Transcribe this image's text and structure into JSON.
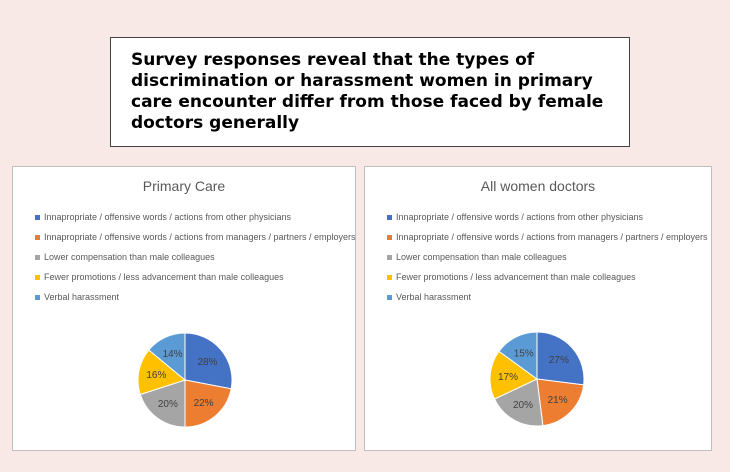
{
  "headline": "Survey responses reveal that the types of discrimination or harassment women in primary care encounter differ from those faced by female doctors generally",
  "colors": [
    "#4472c4",
    "#ed7d31",
    "#a5a5a5",
    "#ffc000",
    "#5b9bd5"
  ],
  "chart_data": [
    {
      "type": "pie",
      "title": "Primary Care",
      "categories": [
        "Innapropriate / offensive words / actions from other physicians",
        "Innapropriate / offensive words / actions from managers / partners / employers",
        "Lower compensation than male colleagues",
        "Fewer promotions / less advancement than male colleagues",
        "Verbal harassment"
      ],
      "values": [
        28,
        22,
        20,
        16,
        14
      ],
      "labels": [
        "28%",
        "22%",
        "20%",
        "16%",
        "14%"
      ],
      "legend": "top"
    },
    {
      "type": "pie",
      "title": "All women doctors",
      "categories": [
        "Innapropriate / offensive words / actions from other physicians",
        "Innapropriate / offensive words / actions from managers / partners / employers",
        "Lower compensation than male colleagues",
        "Fewer promotions / less advancement than male colleagues",
        "Verbal harassment"
      ],
      "values": [
        27,
        21,
        20,
        17,
        15
      ],
      "labels": [
        "27%",
        "21%",
        "20%",
        "17%",
        "15%"
      ],
      "legend": "top"
    }
  ]
}
